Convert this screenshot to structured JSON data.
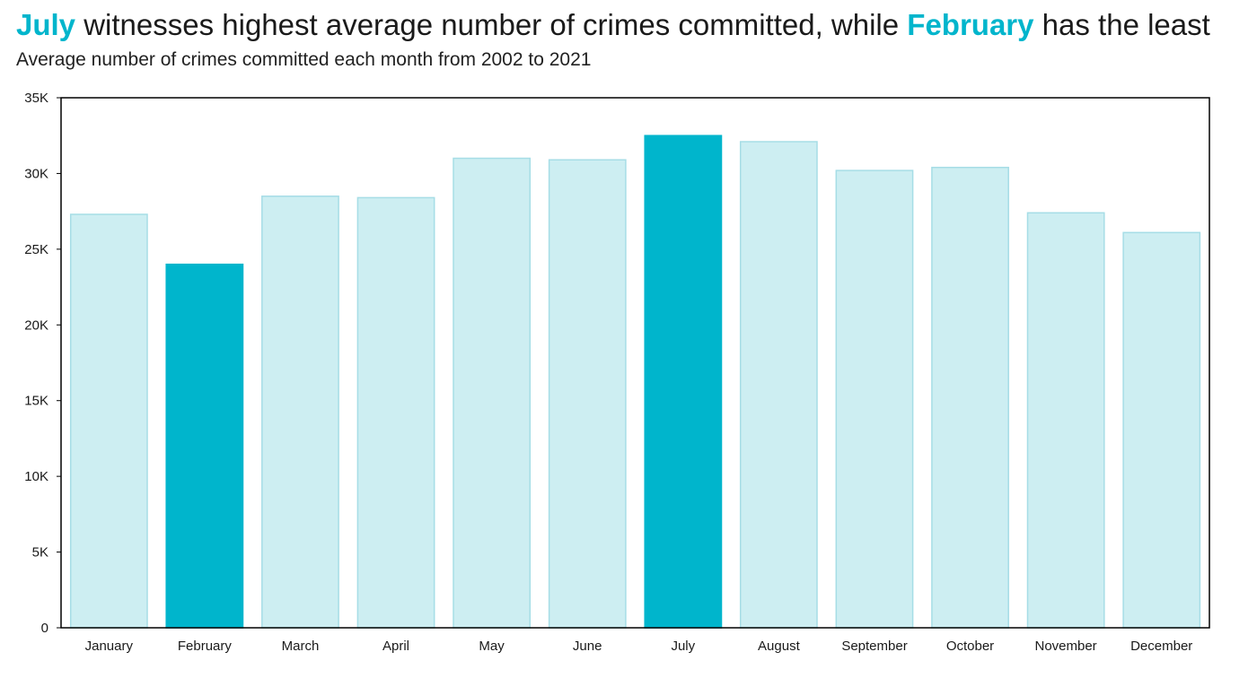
{
  "title": {
    "highlight_1": "July",
    "middle": " witnesses highest average number of crimes committed, while ",
    "highlight_2": "February",
    "end": " has the least"
  },
  "subtitle": "Average number of crimes committed each month from 2002 to 2021",
  "colors": {
    "highlight": "#00b5cc",
    "base": "#cdeef2",
    "base_stroke": "#a6dde6",
    "axis": "#000000",
    "text": "#1a1a1a"
  },
  "chart_data": {
    "type": "bar",
    "categories": [
      "January",
      "February",
      "March",
      "April",
      "May",
      "June",
      "July",
      "August",
      "September",
      "October",
      "November",
      "December"
    ],
    "values": [
      27300,
      24000,
      28500,
      28400,
      31000,
      30900,
      32500,
      32100,
      30200,
      30400,
      27400,
      26100
    ],
    "highlighted": [
      "February",
      "July"
    ],
    "ylim": [
      0,
      35000
    ],
    "yticks": [
      0,
      5000,
      10000,
      15000,
      20000,
      25000,
      30000,
      35000
    ],
    "ytick_labels": [
      "0",
      "5K",
      "10K",
      "15K",
      "20K",
      "25K",
      "30K",
      "35K"
    ],
    "grid": false
  }
}
